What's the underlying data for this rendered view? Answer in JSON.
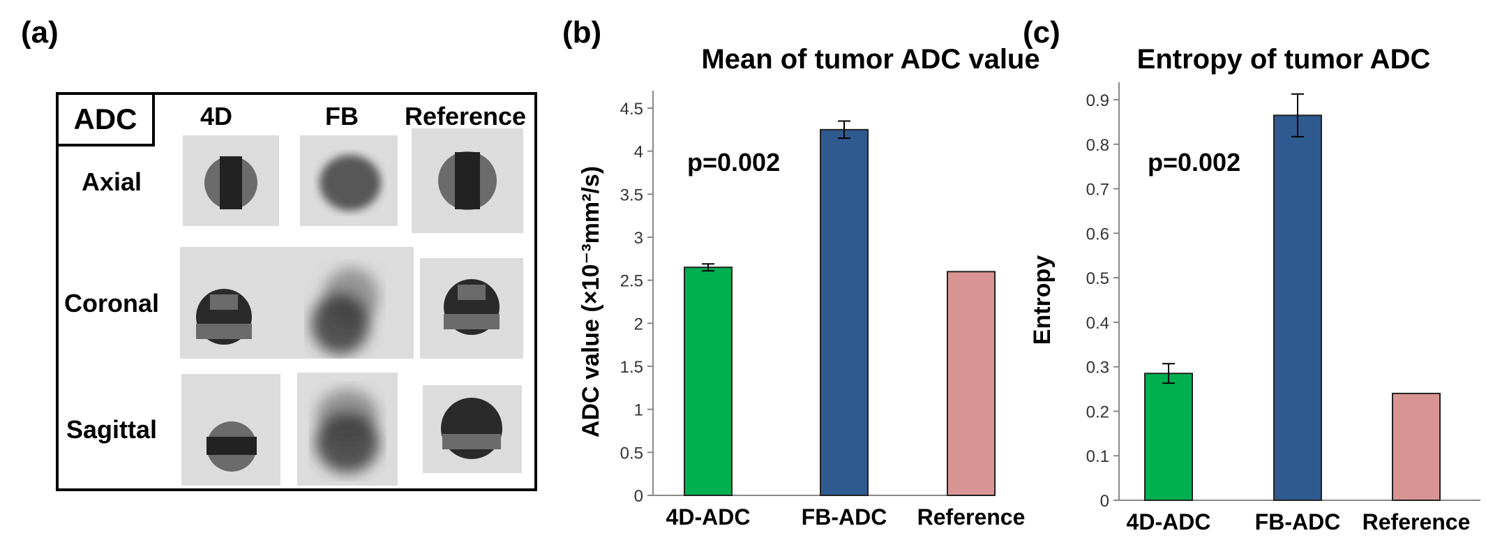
{
  "panel_labels": {
    "a": "(a)",
    "b": "(b)",
    "c": "(c)"
  },
  "image_grid": {
    "corner_label": "ADC",
    "columns": [
      "4D",
      "FB",
      "Reference"
    ],
    "rows": [
      "Axial",
      "Coronal",
      "Sagittal"
    ]
  },
  "colors": {
    "green": "#00B050",
    "blue": "#2F5A8F",
    "pink": "#D99594"
  },
  "chart_data": [
    {
      "type": "bar",
      "title": "Mean of tumor ADC value",
      "ylabel": "ADC value (×10⁻³mm²/s)",
      "categories": [
        "4D-ADC",
        "FB-ADC",
        "Reference"
      ],
      "values": [
        2.65,
        4.25,
        2.6
      ],
      "errors": [
        0.04,
        0.1,
        null
      ],
      "ylim": [
        0,
        4.5
      ],
      "yticks": [
        "0",
        "0.5",
        "1",
        "1.5",
        "2",
        "2.5",
        "3",
        "3.5",
        "4",
        "4.5"
      ],
      "annotation": "p=0.002",
      "grid": false
    },
    {
      "type": "bar",
      "title": "Entropy of tumor ADC",
      "ylabel": "Entropy",
      "categories": [
        "4D-ADC",
        "FB-ADC",
        "Reference"
      ],
      "values": [
        0.285,
        0.865,
        0.24
      ],
      "errors": [
        0.022,
        0.048,
        null
      ],
      "ylim": [
        0,
        0.9
      ],
      "yticks": [
        "0",
        "0.1",
        "0.2",
        "0.3",
        "0.4",
        "0.5",
        "0.6",
        "0.7",
        "0.8",
        "0.9"
      ],
      "annotation": "p=0.002",
      "grid": false
    }
  ]
}
